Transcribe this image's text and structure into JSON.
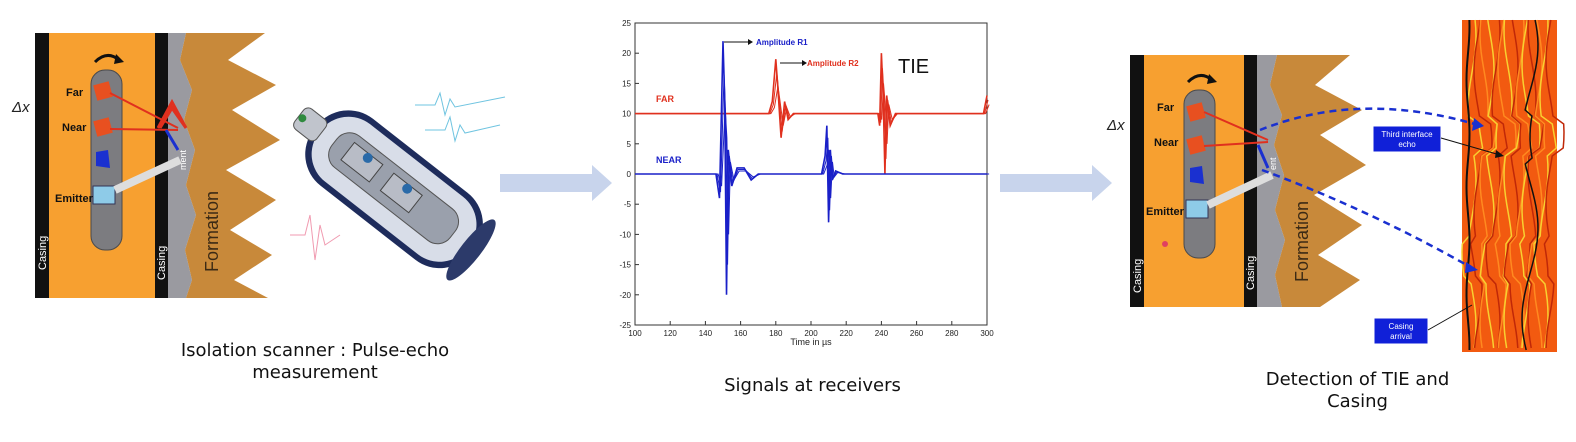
{
  "colors": {
    "orange": "#f7a030",
    "casing": "#111111",
    "formation": "#c8893a",
    "cement": "#9c9ca0",
    "far_signal": "#e0301e",
    "near_signal": "#1a20c8",
    "flow_arrow": "#c8d4ec",
    "callout_box": "#1020d8"
  },
  "left_panel": {
    "delta_x": "Δx",
    "far_label": "Far",
    "near_label": "Near",
    "emitter_label": "Emitter",
    "casing_label_1": "Casing",
    "casing_label_2": "Casing",
    "cement_label": "ment",
    "formation_label": "Formation",
    "caption_line1": "Isolation scanner : Pulse-echo",
    "caption_line2": "measurement"
  },
  "middle_panel": {
    "caption": "Signals at receivers"
  },
  "right_panel": {
    "delta_x": "Δx",
    "far_label": "Far",
    "near_label": "Near",
    "emitter_label": "Emitter",
    "casing_label_1": "Casing",
    "casing_label_2": "Casing",
    "cement_label": "ent",
    "formation_label": "Formation",
    "callout_tie_line1": "Third interface",
    "callout_tie_line2": "echo",
    "callout_casing_line1": "Casing",
    "callout_casing_line2": "arrival",
    "caption_line1": "Detection of TIE and",
    "caption_line2": "Casing"
  },
  "chart_data": {
    "type": "line",
    "xlabel": "Time in µs",
    "ylabel": "",
    "xlim": [
      100,
      300
    ],
    "ylim": [
      -25,
      25
    ],
    "x_ticks": [
      100,
      120,
      140,
      160,
      180,
      200,
      220,
      240,
      260,
      280,
      300
    ],
    "y_ticks": [
      25,
      20,
      15,
      10,
      5,
      0,
      -5,
      -10,
      -15,
      -20,
      -25
    ],
    "grid": false,
    "series": [
      {
        "name": "FAR",
        "color": "#e0301e",
        "baseline": 10,
        "x": [
          100,
          176,
          178,
          180,
          181,
          183,
          185,
          187,
          190,
          238,
          239,
          240,
          241,
          242,
          243,
          245,
          248,
          298,
          300
        ],
        "y": [
          10,
          10,
          12,
          19,
          15,
          6,
          12,
          9,
          10,
          10,
          8,
          20,
          13,
          0,
          13,
          8,
          10,
          10,
          13
        ]
      },
      {
        "name": "NEAR",
        "color": "#1a20c8",
        "baseline": 0,
        "x": [
          100,
          146,
          148,
          150,
          151,
          152,
          153,
          155,
          158,
          162,
          166,
          170,
          206,
          208,
          209,
          210,
          211,
          212,
          214,
          218,
          300
        ],
        "y": [
          0,
          0,
          -4,
          22,
          12,
          -20,
          4,
          -2,
          1,
          1,
          -1,
          0,
          0,
          3,
          8,
          -8,
          4,
          -1,
          0.5,
          0,
          0
        ]
      }
    ],
    "annotations": [
      "Amplitude R1",
      "Amplitude R2",
      "TIE",
      "FAR",
      "NEAR"
    ]
  }
}
